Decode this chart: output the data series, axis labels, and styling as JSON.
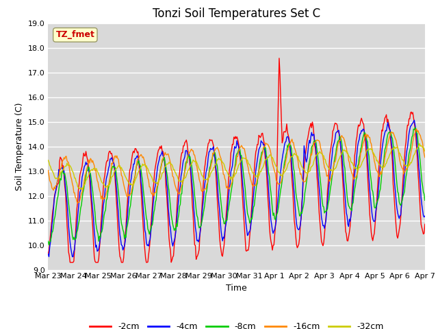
{
  "title": "Tonzi Soil Temperatures Set C",
  "xlabel": "Time",
  "ylabel": "Soil Temperature (C)",
  "ylim": [
    9.0,
    19.0
  ],
  "yticks": [
    9.0,
    10.0,
    11.0,
    12.0,
    13.0,
    14.0,
    15.0,
    16.0,
    17.0,
    18.0,
    19.0
  ],
  "xtick_labels": [
    "Mar 23",
    "Mar 24",
    "Mar 25",
    "Mar 26",
    "Mar 27",
    "Mar 28",
    "Mar 29",
    "Mar 30",
    "Mar 31",
    "Apr 1",
    "Apr 2",
    "Apr 3",
    "Apr 4",
    "Apr 5",
    "Apr 6",
    "Apr 7"
  ],
  "line_colors": [
    "#ff0000",
    "#0000ff",
    "#00cc00",
    "#ff8800",
    "#cccc00"
  ],
  "line_labels": [
    "-2cm",
    "-4cm",
    "-8cm",
    "-16cm",
    "-32cm"
  ],
  "plot_bg_color": "#d9d9d9",
  "fig_bg_color": "#ffffff",
  "label_box_text": "TZ_fmet",
  "label_box_facecolor": "#ffffcc",
  "label_box_edgecolor": "#999966",
  "label_box_textcolor": "#cc0000",
  "title_fontsize": 12,
  "axis_label_fontsize": 9,
  "tick_fontsize": 8
}
